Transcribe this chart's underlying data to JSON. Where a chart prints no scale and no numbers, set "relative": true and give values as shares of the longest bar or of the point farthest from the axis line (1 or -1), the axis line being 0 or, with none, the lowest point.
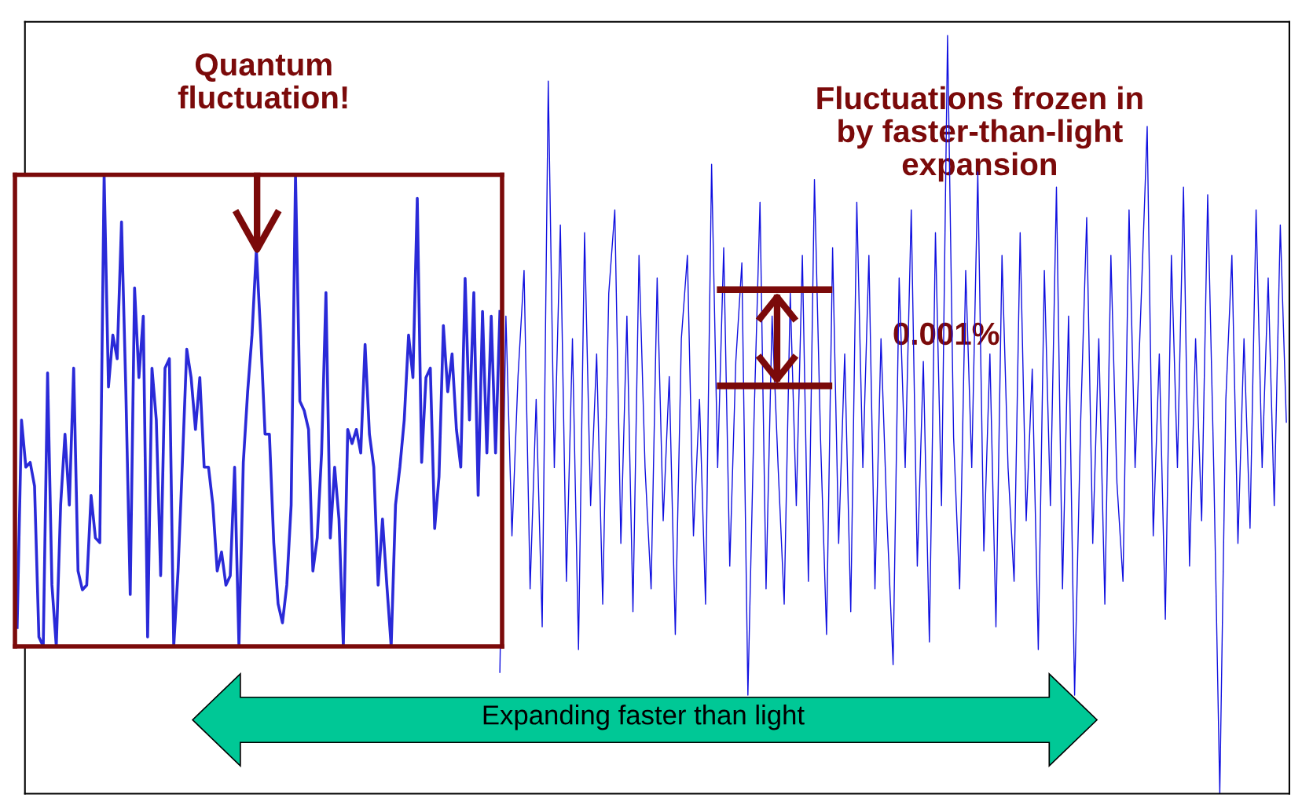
{
  "chart_data": [
    {
      "type": "line",
      "relative": true,
      "color": "#1010e0",
      "categories": [
        null,
        null,
        null,
        null,
        null,
        null,
        null,
        null,
        null,
        null,
        null,
        null,
        null,
        null,
        null,
        null,
        null,
        null,
        null,
        null,
        null,
        null,
        null,
        null,
        null,
        null,
        null,
        null,
        null,
        null,
        null,
        null,
        null,
        null,
        null,
        null,
        null,
        null,
        null,
        null,
        null,
        null,
        null,
        null,
        null,
        null,
        null,
        null,
        null,
        null,
        null,
        null,
        null,
        null,
        null,
        null,
        null,
        null,
        null,
        null,
        null,
        null,
        null,
        null,
        null,
        null,
        null,
        null,
        null,
        null,
        null,
        null,
        null,
        null,
        null,
        null,
        null,
        null,
        null,
        null,
        null,
        null,
        null,
        null,
        null,
        null,
        null,
        null,
        null,
        null,
        null,
        null,
        null,
        null,
        null,
        null,
        null,
        null,
        null,
        null,
        null,
        null,
        null,
        null,
        null,
        null,
        null,
        null,
        null,
        null,
        null,
        null,
        null,
        null,
        null,
        null,
        null,
        null,
        null,
        null,
        null,
        null,
        null,
        null,
        null,
        null,
        null,
        null,
        null,
        null,
        null,
        null,
        null,
        null,
        null,
        null,
        null,
        null,
        null,
        null,
        null,
        null,
        null,
        null,
        null,
        null,
        null,
        null,
        null,
        null,
        null,
        null,
        null,
        null,
        null,
        null,
        null,
        null,
        null,
        null,
        null,
        null,
        null,
        null,
        null,
        null,
        null,
        null,
        null,
        null,
        null,
        null,
        null,
        null,
        null,
        null,
        null,
        null,
        null,
        null,
        null,
        null,
        null,
        null,
        null,
        null,
        null,
        null,
        null,
        null,
        null,
        null,
        null,
        null,
        null,
        null,
        null,
        null,
        null,
        null,
        null,
        null,
        null,
        null,
        null,
        null,
        null,
        null,
        null
      ],
      "values": [
        null,
        null,
        null,
        null,
        null,
        null,
        null,
        null,
        null,
        null,
        null,
        null,
        null,
        null,
        null,
        null,
        null,
        null,
        null,
        null,
        null,
        null,
        null,
        null,
        null,
        null,
        null,
        null,
        null,
        null,
        null,
        null,
        null,
        null,
        null,
        null,
        null,
        null,
        null,
        null,
        null,
        null,
        null,
        null,
        null,
        null,
        null,
        null,
        null,
        null,
        null,
        null,
        null,
        null,
        null,
        null,
        null,
        null,
        null,
        null,
        null,
        null,
        null,
        null,
        null,
        null,
        null,
        null,
        null,
        null,
        null,
        null,
        null,
        null,
        null,
        null,
        null,
        null,
        0.16,
        0.63,
        0.34,
        0.55,
        0.69,
        0.27,
        0.52,
        0.22,
        0.94,
        0.43,
        0.75,
        0.28,
        0.6,
        0.19,
        0.74,
        0.38,
        0.58,
        0.25,
        0.66,
        0.77,
        0.33,
        0.63,
        0.24,
        0.71,
        0.43,
        0.27,
        0.68,
        0.36,
        0.55,
        0.21,
        0.6,
        0.71,
        0.34,
        0.52,
        0.25,
        0.83,
        0.43,
        0.72,
        0.3,
        0.57,
        0.7,
        0.13,
        0.49,
        0.78,
        0.27,
        0.63,
        0.43,
        0.25,
        0.66,
        0.38,
        0.71,
        0.28,
        0.81,
        0.47,
        0.21,
        0.72,
        0.33,
        0.58,
        0.24,
        0.78,
        0.43,
        0.71,
        0.27,
        0.6,
        0.36,
        0.17,
        0.68,
        0.43,
        0.77,
        0.3,
        0.57,
        0.2,
        0.74,
        0.38,
        1.0,
        0.47,
        0.27,
        0.69,
        0.43,
        0.82,
        0.32,
        0.58,
        0.22,
        0.71,
        0.43,
        0.28,
        0.74,
        0.36,
        0.56,
        0.19,
        0.69,
        0.38,
        0.8,
        0.27,
        0.63,
        0.13,
        0.49,
        0.76,
        0.33,
        0.6,
        0.25,
        0.71,
        0.41,
        0.28,
        0.77,
        0.43,
        0.65,
        0.88,
        0.34,
        0.58,
        0.23,
        0.71,
        0.43,
        0.8,
        0.3,
        0.6,
        0.36,
        0.79,
        0.43,
        0,
        0.52,
        0.71,
        0.33,
        0.6,
        0.35,
        0.77,
        0.43,
        0.68,
        0.38,
        0.75,
        0.49
      ],
      "annotations": [
        "Fluctuations frozen in\nby faster-than-light\nexpansion",
        "0.001%",
        "Expanding faster than light"
      ]
    },
    {
      "type": "line",
      "relative": true,
      "color": "#2a2ad8",
      "categories": [
        null,
        null,
        null,
        null,
        null,
        null,
        null,
        null,
        null,
        null,
        null,
        null,
        null,
        null,
        null,
        null,
        null,
        null,
        null,
        null,
        null,
        null,
        null,
        null,
        null,
        null,
        null,
        null,
        null,
        null,
        null,
        null,
        null,
        null,
        null,
        null,
        null,
        null,
        null,
        null,
        null,
        null,
        null,
        null,
        null,
        null,
        null,
        null,
        null,
        null,
        null,
        null,
        null,
        null,
        null,
        null,
        null,
        null,
        null,
        null,
        null,
        null,
        null,
        null,
        null,
        null,
        null,
        null,
        null,
        null,
        null,
        null,
        null,
        null,
        null,
        null,
        null,
        null,
        null,
        null,
        null,
        null,
        null,
        null,
        null,
        null,
        null,
        null,
        null,
        null,
        null,
        null,
        null,
        null,
        null,
        null,
        null,
        null,
        null,
        null,
        null,
        null,
        null,
        null,
        null,
        null,
        null,
        null,
        null,
        null,
        null,
        null
      ],
      "values": [
        0.04,
        0.48,
        0.38,
        0.39,
        0.34,
        0.02,
        0,
        0.58,
        0.13,
        0,
        0.3,
        0.45,
        0.3,
        0.59,
        0.16,
        0.12,
        0.13,
        0.32,
        0.23,
        0.22,
        1,
        0.55,
        0.66,
        0.61,
        0.9,
        0.54,
        0.11,
        0.76,
        0.57,
        0.7,
        0.02,
        0.59,
        0.48,
        0.15,
        0.59,
        0.61,
        0,
        0.16,
        0.39,
        0.63,
        0.57,
        0.46,
        0.57,
        0.38,
        0.38,
        0.3,
        0.16,
        0.2,
        0.13,
        0.15,
        0.38,
        0,
        0.39,
        0.54,
        0.66,
        0.84,
        0.66,
        0.45,
        0.45,
        0.22,
        0.09,
        0.05,
        0.13,
        0.3,
        1,
        0.52,
        0.5,
        0.46,
        0.16,
        0.23,
        0.41,
        0.75,
        0.23,
        0.38,
        0.27,
        0,
        0.46,
        0.43,
        0.46,
        0.41,
        0.64,
        0.45,
        0.38,
        0.13,
        0.27,
        0.13,
        0,
        0.3,
        0.38,
        0.48,
        0.66,
        0.57,
        0.95,
        0.39,
        0.57,
        0.59,
        0.25,
        0.36,
        0.68,
        0.54,
        0.62,
        0.46,
        0.38,
        0.78,
        0.48,
        0.75,
        0.32,
        0.71,
        0.41,
        0.7,
        0.41,
        0.71
      ],
      "annotations": [
        "Quantum\nfluctuation!"
      ]
    }
  ]
}
